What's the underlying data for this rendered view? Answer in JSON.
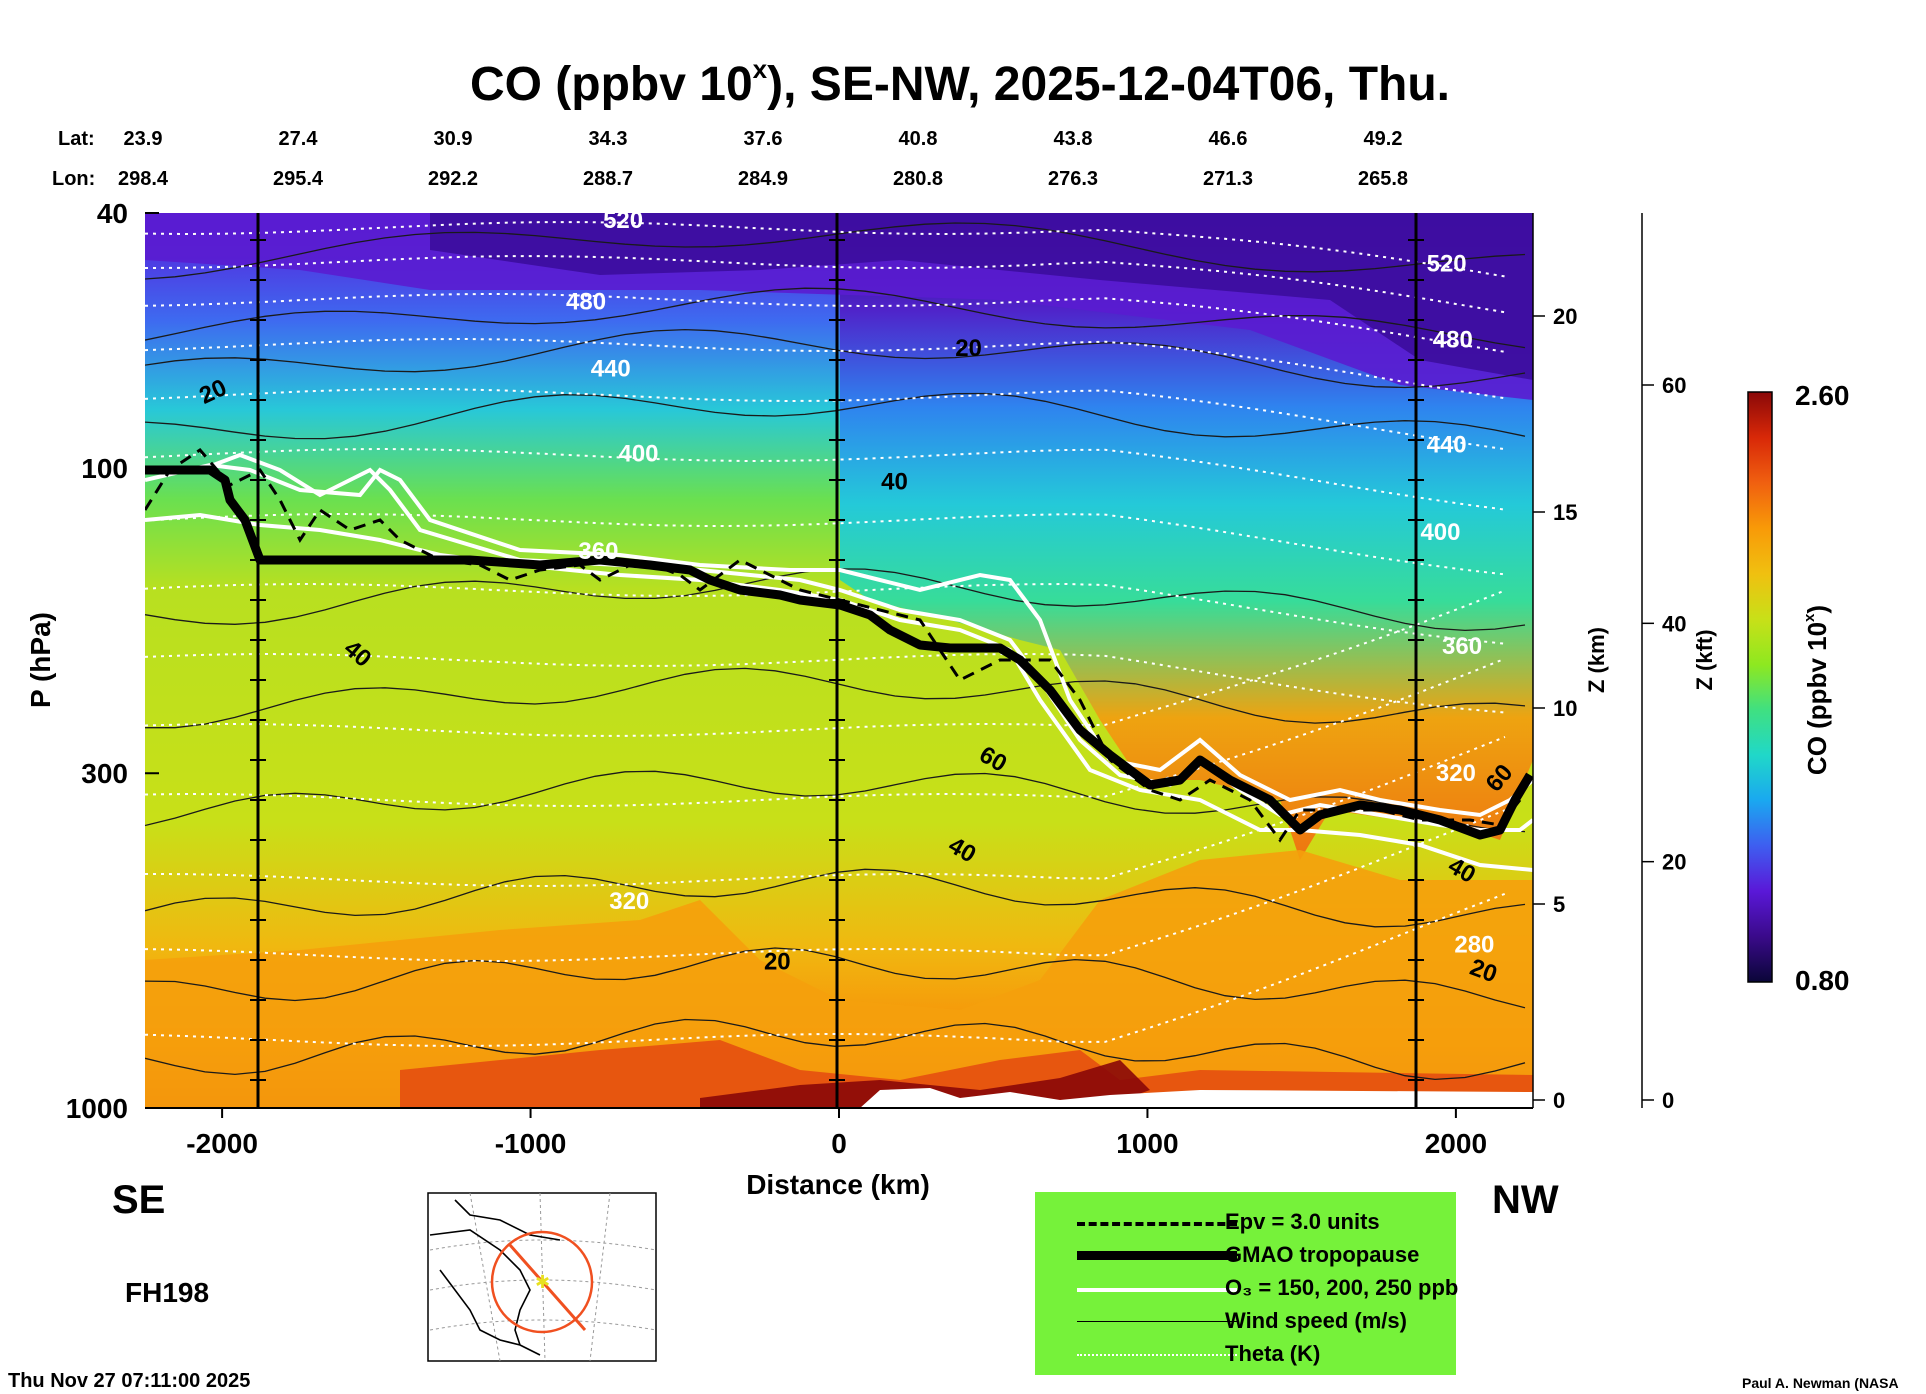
{
  "title": "CO (ppbv 10",
  "title_sup": "x",
  "title_rest": "), SE-NW, 2025-12-04T06, Thu.",
  "lat_label": "Lat:",
  "lon_label": "Lon:",
  "lat_values": [
    "23.9",
    "27.4",
    "30.9",
    "34.3",
    "37.6",
    "40.8",
    "43.8",
    "46.6",
    "49.2"
  ],
  "lon_values": [
    "298.4",
    "295.4",
    "292.2",
    "288.7",
    "284.9",
    "280.8",
    "276.3",
    "271.3",
    "265.8"
  ],
  "direction_left": "SE",
  "direction_right": "NW",
  "forecast_hour": "FH198",
  "footer_date": "Thu Nov 27 07:11:00 2025",
  "footer_author": "Paul A. Newman (NASA",
  "legend": [
    {
      "label": "Epv = 3.0 units",
      "style": "dashed"
    },
    {
      "label": "GMAO tropopause",
      "style": "thick"
    },
    {
      "label": "O₃ = 150, 200, 250 ppb",
      "style": "white"
    },
    {
      "label": "Wind speed (m/s)",
      "style": "thin"
    },
    {
      "label": "Theta (K)",
      "style": "dotted"
    }
  ],
  "colors": {
    "legend_bg": "#76f23a",
    "colorbar": [
      "#0a0638",
      "#3a0a8a",
      "#5a18d8",
      "#3e5ef0",
      "#1aa8f0",
      "#20d8c8",
      "#40e080",
      "#8ee820",
      "#c8e018",
      "#f0c010",
      "#f89a08",
      "#f06010",
      "#d82808",
      "#8a0808"
    ]
  },
  "chart_data": {
    "type": "heatmap",
    "title": "CO (ppbv 10^x), SE-NW, 2025-12-04T06, Thu.",
    "xlabel": "Distance (km)",
    "ylabel": "P (hPa)",
    "y2label": "Z (km)",
    "y3label": "Z (kft)",
    "colorbar_label": "CO (ppbv 10^x)",
    "colorbar_range": [
      0.8,
      2.6
    ],
    "colorbar_min_label": "0.80",
    "colorbar_max_label": "2.60",
    "xlim": [
      -2250,
      2250
    ],
    "ylim_hpa": [
      1000,
      40
    ],
    "x_ticks": [
      -2000,
      -1000,
      0,
      1000,
      2000
    ],
    "x_tick_labels": [
      "-2000",
      "-1000",
      "0",
      "1000",
      "2000"
    ],
    "p_ticks": [
      40,
      100,
      300,
      1000
    ],
    "p_tick_labels": [
      "40",
      "100",
      "300",
      "1000"
    ],
    "z_km_ticks": [
      0,
      5,
      10,
      15,
      20
    ],
    "z_km_labels": [
      "0",
      "5",
      "10",
      "15",
      "20"
    ],
    "z_kft_ticks": [
      0,
      20,
      40,
      60
    ],
    "z_kft_labels": [
      "0",
      "20",
      "40",
      "60"
    ],
    "theta_labels": [
      {
        "text": "520",
        "x": -700,
        "p": 41
      },
      {
        "text": "480",
        "x": -820,
        "p": 55
      },
      {
        "text": "440",
        "x": -740,
        "p": 70
      },
      {
        "text": "400",
        "x": -650,
        "p": 95
      },
      {
        "text": "360",
        "x": -780,
        "p": 135
      },
      {
        "text": "320",
        "x": -680,
        "p": 475
      },
      {
        "text": "520",
        "x": 1970,
        "p": 48
      },
      {
        "text": "480",
        "x": 1990,
        "p": 63
      },
      {
        "text": "440",
        "x": 1970,
        "p": 92
      },
      {
        "text": "400",
        "x": 1950,
        "p": 126
      },
      {
        "text": "360",
        "x": 2020,
        "p": 190
      },
      {
        "text": "320",
        "x": 2000,
        "p": 300
      },
      {
        "text": "280",
        "x": 2060,
        "p": 555
      }
    ],
    "wind_labels": [
      {
        "text": "20",
        "x": -2030,
        "p": 76,
        "rot": -25
      },
      {
        "text": "20",
        "x": 420,
        "p": 65,
        "rot": 0
      },
      {
        "text": "40",
        "x": 180,
        "p": 105,
        "rot": 0
      },
      {
        "text": "40",
        "x": -1560,
        "p": 195,
        "rot": 40
      },
      {
        "text": "60",
        "x": 500,
        "p": 285,
        "rot": 30
      },
      {
        "text": "40",
        "x": 400,
        "p": 395,
        "rot": 30
      },
      {
        "text": "20",
        "x": -200,
        "p": 590,
        "rot": 0
      },
      {
        "text": "60",
        "x": 2140,
        "p": 305,
        "rot": -50
      },
      {
        "text": "40",
        "x": 2020,
        "p": 425,
        "rot": 30
      },
      {
        "text": "20",
        "x": 2090,
        "p": 610,
        "rot": 20
      }
    ]
  }
}
